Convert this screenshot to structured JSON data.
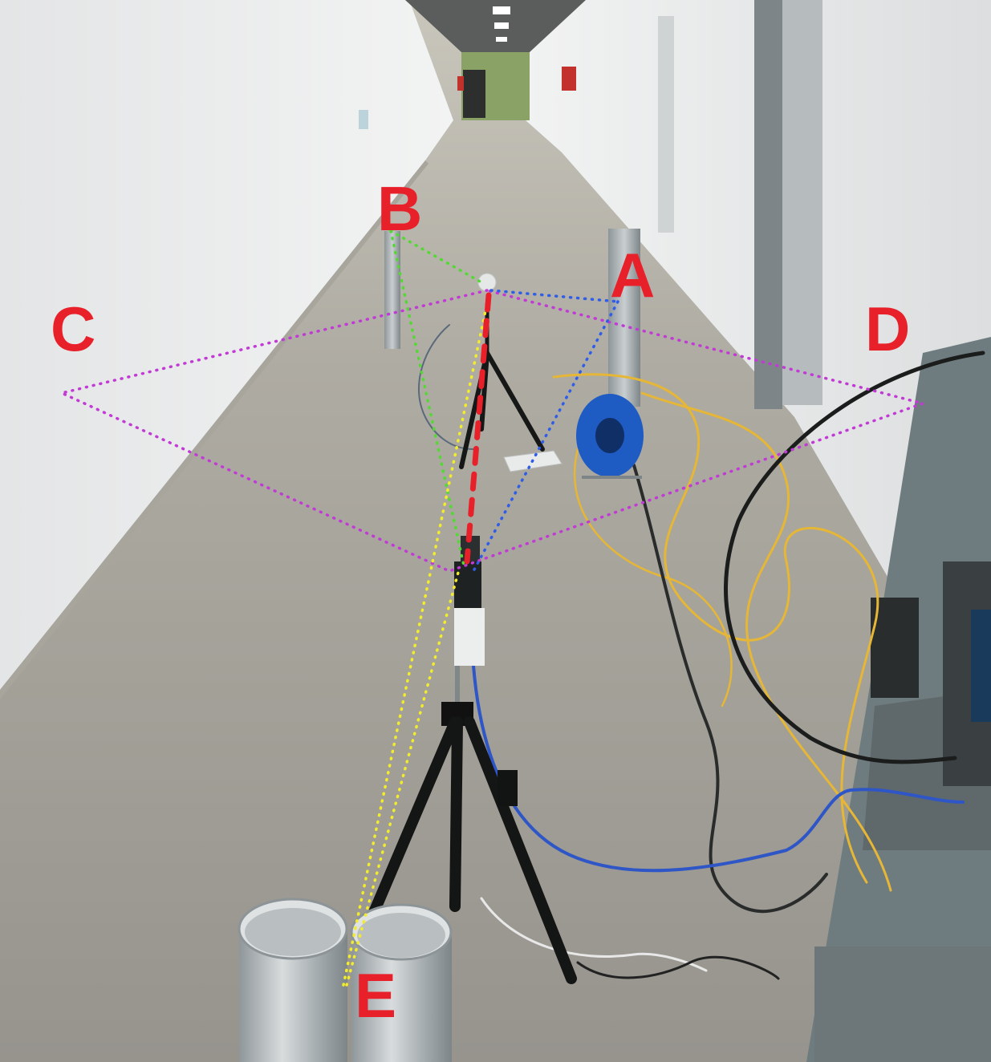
{
  "labels": {
    "a": "A",
    "b": "B",
    "c": "C",
    "d": "D",
    "e": "E"
  },
  "colors": {
    "label": "#e8202a",
    "line_green": "#55d836",
    "line_blue": "#2f5de8",
    "line_magenta": "#c23ad6",
    "line_yellow": "#f2ec2c",
    "line_red": "#e8202a",
    "wall": "#e9eaea",
    "floor": "#a5a39b",
    "cable_yellow": "#e6b636",
    "cable_blue": "#2e56c6",
    "reel_blue": "#1e5bc2",
    "pipe": "#a9b0b3",
    "rack": "#6f7c7f"
  }
}
